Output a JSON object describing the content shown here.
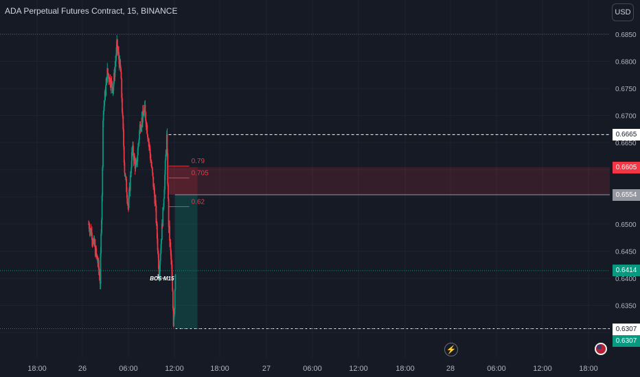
{
  "header": {
    "title": "ADA Perpetual Futures Contract, 15, BINANCE",
    "currency_button": "USD"
  },
  "price_tags": [
    {
      "value": "0.6665",
      "bg": "#ffffff",
      "fg": "#131722"
    },
    {
      "value": "0.6605",
      "bg": "#f23645",
      "fg": "#ffffff"
    },
    {
      "value": "0.6554",
      "bg": "#9598a1",
      "fg": "#ffffff"
    },
    {
      "value": "0.6414",
      "bg": "#089981",
      "fg": "#ffffff"
    },
    {
      "value": "0.6307",
      "bg": "#ffffff",
      "fg": "#131722"
    },
    {
      "value": "0.6307",
      "bg": "#089981",
      "fg": "#ffffff"
    }
  ],
  "icons": {
    "bolt": "lightning-icon",
    "flag": "us-flag-icon"
  },
  "colors": {
    "up": "#089981",
    "down": "#f23645",
    "background": "#161a25",
    "grid": "#1f2330",
    "fib": "#f23645"
  },
  "chart_data": {
    "type": "candlestick",
    "title": "ADA Perpetual Futures Contract, 15, BINANCE",
    "y_axis_ticks": [
      0.685,
      0.68,
      0.675,
      0.67,
      0.665,
      0.66,
      0.655,
      0.65,
      0.645,
      0.64,
      0.635,
      0.63
    ],
    "y_tick_labels": [
      "0.6850",
      "0.6800",
      "0.6750",
      "0.6700",
      "0.6650",
      "0.6600",
      "0.6550",
      "0.6500",
      "0.6450",
      "0.6400",
      "0.6350",
      "0.6300"
    ],
    "ylim": [
      0.6275,
      0.688
    ],
    "x_tick_labels": [
      "18:00",
      "26",
      "06:00",
      "12:00",
      "18:00",
      "27",
      "06:00",
      "12:00",
      "18:00",
      "28",
      "06:00",
      "12:00",
      "18:00"
    ],
    "price_path": [
      {
        "time": "25 15:15",
        "price": 0.65
      },
      {
        "time": "25 17:00",
        "price": 0.648
      },
      {
        "time": "25 20:00",
        "price": 0.643
      },
      {
        "time": "25 21:15",
        "price": 0.6395
      },
      {
        "time": "25 22:30",
        "price": 0.66
      },
      {
        "time": "26 00:00",
        "price": 0.668
      },
      {
        "time": "26 02:00",
        "price": 0.663
      },
      {
        "time": "26 04:30",
        "price": 0.666
      },
      {
        "time": "26 06:15",
        "price": 0.656
      },
      {
        "time": "26 09:00",
        "price": 0.664
      },
      {
        "time": "26 13:00",
        "price": 0.678
      },
      {
        "time": "26 16:00",
        "price": 0.675
      },
      {
        "time": "26 18:00",
        "price": 0.683
      },
      {
        "time": "26 20:00",
        "price": 0.678
      },
      {
        "time": "26 22:00",
        "price": 0.66
      },
      {
        "time": "27 00:00",
        "price": 0.653
      },
      {
        "time": "27 02:00",
        "price": 0.664
      },
      {
        "time": "27 04:00",
        "price": 0.66
      },
      {
        "time": "27 06:00",
        "price": 0.668
      },
      {
        "time": "27 08:30",
        "price": 0.671
      },
      {
        "time": "27 11:00",
        "price": 0.664
      },
      {
        "time": "27 14:00",
        "price": 0.654
      },
      {
        "time": "27 16:00",
        "price": 0.641
      },
      {
        "time": "27 18:00",
        "price": 0.652
      },
      {
        "time": "27 20:00",
        "price": 0.666
      },
      {
        "time": "27 21:00",
        "price": 0.65
      },
      {
        "time": "27 22:30",
        "price": 0.642
      },
      {
        "time": "27 23:30",
        "price": 0.632
      },
      {
        "time": "28 00:00",
        "price": 0.635
      },
      {
        "time": "28 00:30",
        "price": 0.6414
      }
    ],
    "horizontal_levels": [
      {
        "price": 0.6665,
        "style": "dashed"
      },
      {
        "price": 0.6414,
        "style": "dotted"
      },
      {
        "price": 0.6307,
        "style": "dashed"
      },
      {
        "price": 0.685,
        "style": "dotted"
      }
    ],
    "fibonacci_levels": [
      {
        "label": "0.79",
        "price": 0.6607
      },
      {
        "label": "0.705",
        "price": 0.6585
      },
      {
        "label": "0.62",
        "price": 0.6532
      }
    ],
    "annotations": [
      {
        "text": "BOS M15",
        "price": 0.64
      }
    ],
    "short_position": {
      "entry": 0.6554,
      "stop": 0.6605,
      "target": 0.6307
    },
    "grid": true
  }
}
